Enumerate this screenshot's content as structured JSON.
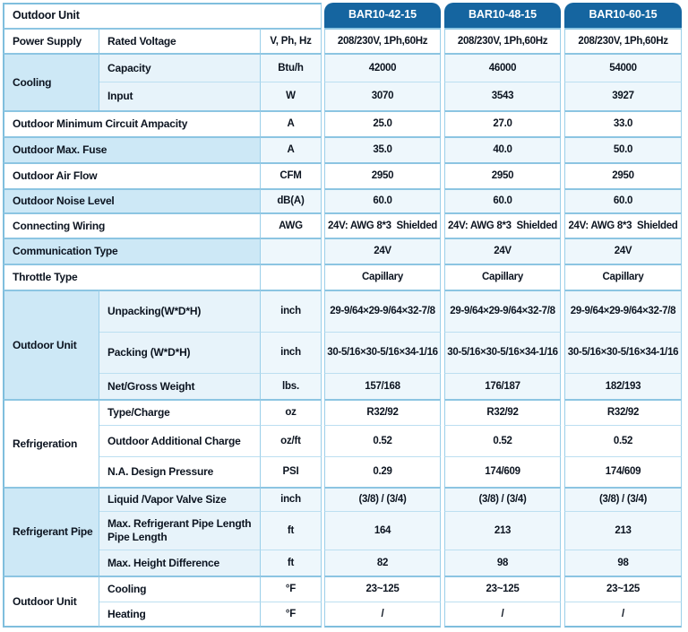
{
  "title": "Outdoor Unit",
  "models": [
    "BAR10-42-15",
    "BAR10-48-15",
    "BAR10-60-15"
  ],
  "colors": {
    "tab_blue": "#1565a0",
    "tint_strong": "#cde8f6",
    "tint_sub": "#e7f3fa",
    "tint_faint": "#eef7fc",
    "grid_line": "#9bcfe9",
    "outer_line": "#7fbedd",
    "text": "#0c1420"
  },
  "rows": [
    {
      "group": "Power Supply",
      "group_span": 1,
      "sub": "Rated Voltage",
      "unit": "V, Ph, Hz",
      "values": [
        "208/230V, 1Ph,60Hz",
        "208/230V, 1Ph,60Hz",
        "208/230V, 1Ph,60Hz"
      ],
      "tint": false,
      "section": true
    },
    {
      "group": "Cooling",
      "group_span": 2,
      "sub": "Capacity",
      "unit": "Btu/h",
      "values": [
        "42000",
        "46000",
        "54000"
      ],
      "tint": true,
      "section": true
    },
    {
      "sub": "Input",
      "unit": "W",
      "values": [
        "3070",
        "3543",
        "3927"
      ],
      "tint": true,
      "section": false
    },
    {
      "label": "Outdoor Minimum Circuit Ampacity",
      "unit": "A",
      "values": [
        "25.0",
        "27.0",
        "33.0"
      ],
      "tint": false,
      "section": true
    },
    {
      "label": "Outdoor Max. Fuse",
      "unit": "A",
      "values": [
        "35.0",
        "40.0",
        "50.0"
      ],
      "tint": true,
      "section": true
    },
    {
      "label": "Outdoor Air Flow",
      "unit": "CFM",
      "values": [
        "2950",
        "2950",
        "2950"
      ],
      "tint": false,
      "section": true
    },
    {
      "label": "Outdoor Noise Level",
      "unit": "dB(A)",
      "values": [
        "60.0",
        "60.0",
        "60.0"
      ],
      "tint": true,
      "section": true
    },
    {
      "label": "Connecting Wiring",
      "unit": "AWG",
      "values": [
        "24V: AWG 8*3  Shielded",
        "24V: AWG 8*3  Shielded",
        "24V: AWG 8*3  Shielded"
      ],
      "tint": false,
      "section": true
    },
    {
      "label": "Communication Type",
      "unit": "",
      "values": [
        "24V",
        "24V",
        "24V"
      ],
      "tint": true,
      "section": true
    },
    {
      "label": "Throttle Type",
      "unit": "",
      "values": [
        "Capillary",
        "Capillary",
        "Capillary"
      ],
      "tint": false,
      "section": true
    },
    {
      "group": "Outdoor Unit",
      "group_span": 3,
      "sub": "Unpacking(W*D*H)",
      "unit": "inch",
      "values": [
        "29-9/64×29-9/64×32-7/8",
        "29-9/64×29-9/64×32-7/8",
        "29-9/64×29-9/64×32-7/8"
      ],
      "tint": true,
      "section": true
    },
    {
      "sub": "Packing (W*D*H)",
      "unit": "inch",
      "values": [
        "30-5/16×30-5/16×34-1/16",
        "30-5/16×30-5/16×34-1/16",
        "30-5/16×30-5/16×34-1/16"
      ],
      "tint": true,
      "section": false
    },
    {
      "sub": "Net/Gross Weight",
      "unit": "lbs.",
      "values": [
        "157/168",
        "176/187",
        "182/193"
      ],
      "tint": true,
      "section": false
    },
    {
      "group": "Refrigeration",
      "group_span": 3,
      "sub": "Type/Charge",
      "unit": "oz",
      "values": [
        "R32/92",
        "R32/92",
        "R32/92"
      ],
      "tint": false,
      "section": true
    },
    {
      "sub": "Outdoor Additional Charge",
      "unit": "oz/ft",
      "values": [
        "0.52",
        "0.52",
        "0.52"
      ],
      "tint": false,
      "section": false
    },
    {
      "sub": "N.A. Design Pressure",
      "unit": "PSI",
      "values": [
        "0.29",
        "174/609",
        "174/609"
      ],
      "tint": false,
      "section": false
    },
    {
      "group": "Refrigerant Pipe",
      "group_span": 3,
      "sub": "Liquid /Vapor Valve Size",
      "unit": "inch",
      "values": [
        "(3/8) / (3/4)",
        "(3/8) / (3/4)",
        "(3/8) / (3/4)"
      ],
      "tint": true,
      "section": true
    },
    {
      "sub": "Max. Refrigerant Pipe Length\nPipe Length",
      "unit": "ft",
      "values": [
        "164",
        "213",
        "213"
      ],
      "tint": true,
      "section": false
    },
    {
      "sub": "Max. Height Difference",
      "unit": "ft",
      "values": [
        "82",
        "98",
        "98"
      ],
      "tint": true,
      "section": false
    },
    {
      "group": "Outdoor Unit",
      "group_span": 2,
      "sub": "Cooling",
      "unit": "°F",
      "values": [
        "23~125",
        "23~125",
        "23~125"
      ],
      "tint": false,
      "section": true
    },
    {
      "sub": "Heating",
      "unit": "°F",
      "values": [
        "/",
        "/",
        "/"
      ],
      "tint": false,
      "section": false
    }
  ]
}
